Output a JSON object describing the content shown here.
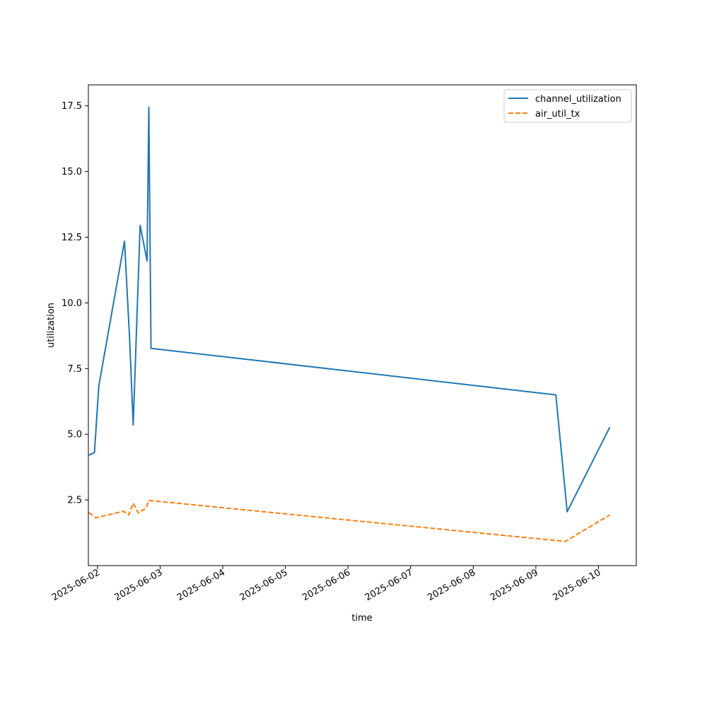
{
  "chart_data": {
    "type": "line",
    "title": "",
    "xlabel": "time",
    "ylabel": "utilization",
    "x_ticks": [
      "2025-06-02",
      "2025-06-03",
      "2025-06-04",
      "2025-06-05",
      "2025-06-06",
      "2025-06-07",
      "2025-06-08",
      "2025-06-09",
      "2025-06-10"
    ],
    "y_ticks": [
      "2.5",
      "5.0",
      "7.5",
      "10.0",
      "12.5",
      "15.0",
      "17.5"
    ],
    "xlim": [
      "2025-06-01T20:30",
      "2025-06-10T14:30"
    ],
    "ylim": [
      0.0,
      18.3
    ],
    "grid": false,
    "legend": "top-right",
    "series": [
      {
        "name": "channel_utilization",
        "color": "#1f77b4",
        "dash": "solid",
        "points": [
          {
            "x": "2025-06-01T20:40",
            "y": 4.2
          },
          {
            "x": "2025-06-01T22:50",
            "y": 4.3
          },
          {
            "x": "2025-06-02T00:30",
            "y": 6.85
          },
          {
            "x": "2025-06-02T10:20",
            "y": 12.35
          },
          {
            "x": "2025-06-02T12:20",
            "y": 8.6
          },
          {
            "x": "2025-06-02T13:40",
            "y": 5.35
          },
          {
            "x": "2025-06-02T16:20",
            "y": 12.95
          },
          {
            "x": "2025-06-02T19:00",
            "y": 11.6
          },
          {
            "x": "2025-06-02T19:40",
            "y": 17.45
          },
          {
            "x": "2025-06-02T20:30",
            "y": 8.27
          },
          {
            "x": "2025-06-09T07:40",
            "y": 6.5
          },
          {
            "x": "2025-06-09T12:00",
            "y": 2.05
          },
          {
            "x": "2025-06-10T04:20",
            "y": 5.27
          }
        ]
      },
      {
        "name": "air_util_tx",
        "color": "#ff7f0e",
        "dash": "dashed",
        "points": [
          {
            "x": "2025-06-01T20:40",
            "y": 2.02
          },
          {
            "x": "2025-06-01T23:20",
            "y": 1.82
          },
          {
            "x": "2025-06-02T10:00",
            "y": 2.07
          },
          {
            "x": "2025-06-02T12:00",
            "y": 1.93
          },
          {
            "x": "2025-06-02T13:40",
            "y": 2.38
          },
          {
            "x": "2025-06-02T15:40",
            "y": 2.0
          },
          {
            "x": "2025-06-02T18:40",
            "y": 2.2
          },
          {
            "x": "2025-06-02T19:40",
            "y": 2.48
          },
          {
            "x": "2025-06-09T11:20",
            "y": 0.92
          },
          {
            "x": "2025-06-10T04:20",
            "y": 1.93
          }
        ]
      }
    ]
  }
}
